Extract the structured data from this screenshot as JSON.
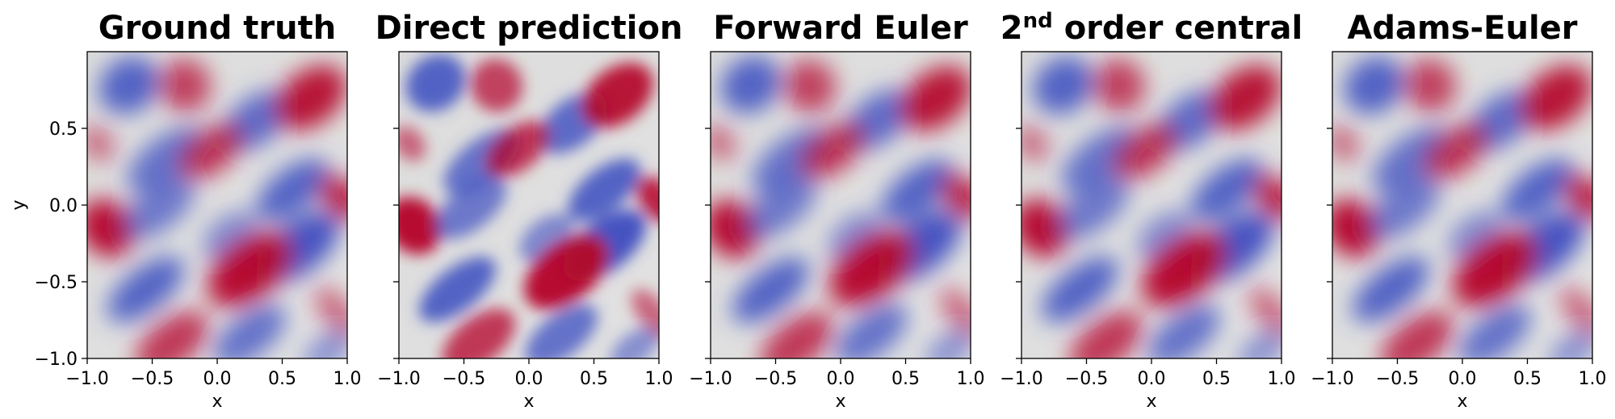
{
  "chart_data": {
    "type": "heatmap",
    "colormap": "coolwarm",
    "xlim": [
      -1.0,
      1.0
    ],
    "ylim": [
      -1.0,
      1.0
    ],
    "xticks": [
      -1.0,
      -0.5,
      0.0,
      0.5,
      1.0
    ],
    "xtick_labels": [
      "−1.0",
      "−0.5",
      "0.0",
      "0.5",
      "1.0"
    ],
    "yticks": [
      -1.0,
      -0.5,
      0.0,
      0.5
    ],
    "ytick_labels": [
      "−1.0",
      "−0.5",
      "0.0",
      "0.5"
    ],
    "xlabel": "x",
    "ylabel": "y",
    "panels": [
      {
        "title": "Ground truth",
        "ylabel_shown": true
      },
      {
        "title": "Direct prediction",
        "ylabel_shown": false
      },
      {
        "title": "Forward Euler",
        "ylabel_shown": false
      },
      {
        "title_base": "2",
        "title_sup": "nd",
        "title_rest": " order central",
        "ylabel_shown": false
      },
      {
        "title": "Adams-Euler",
        "ylabel_shown": false
      }
    ],
    "colors": {
      "low": "#3b4cc0",
      "mid": "#dddddd",
      "high": "#b40426"
    }
  }
}
